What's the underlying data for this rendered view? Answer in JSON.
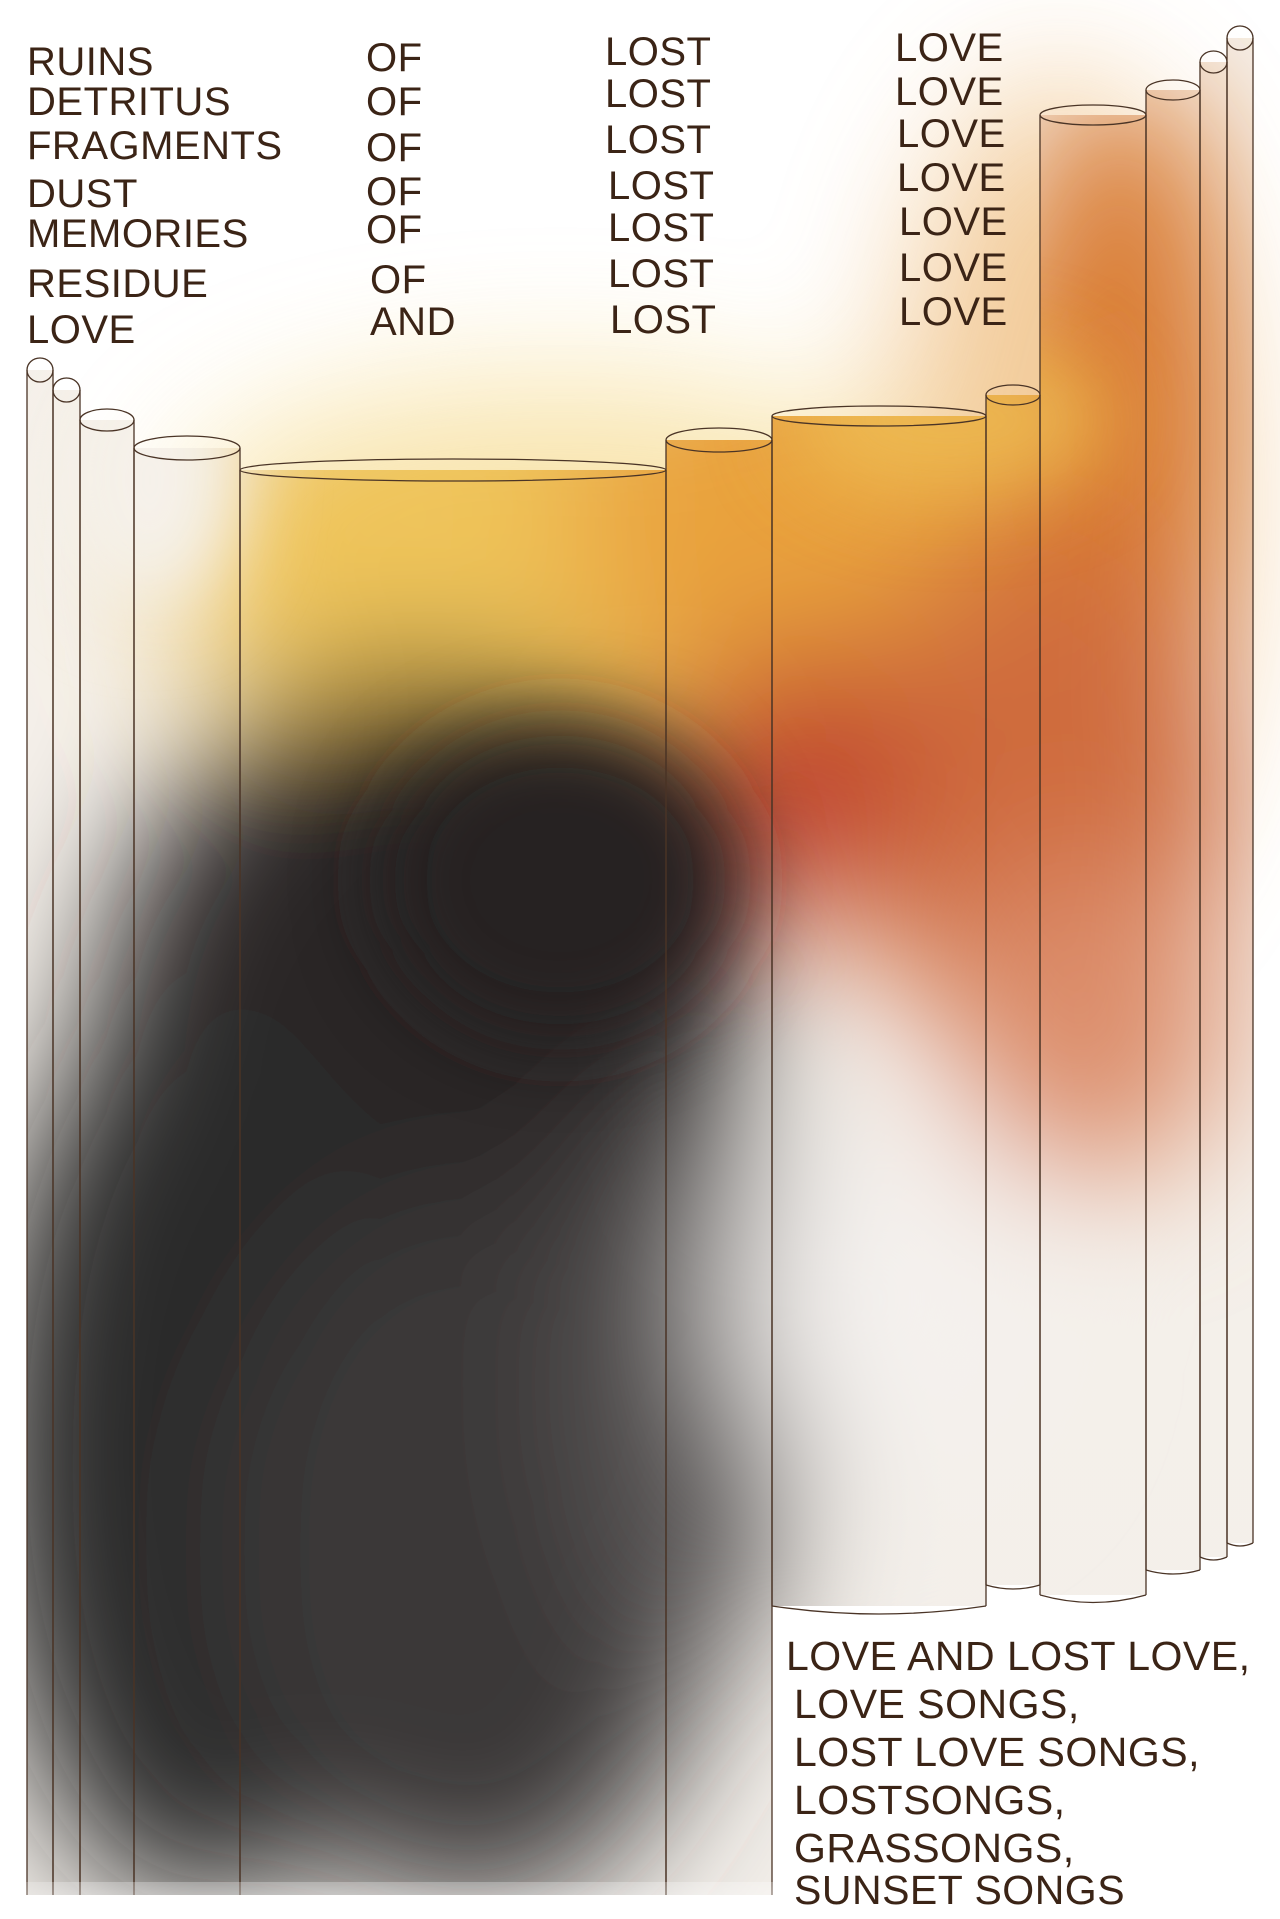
{
  "colors": {
    "text": "#3b2416",
    "outline": "#4a3426",
    "dark": "#2a2727",
    "amber": "#e9a73b",
    "gold": "#efc45a",
    "orange": "#d0743a",
    "red": "#c44a32"
  },
  "top_text": {
    "col1": [
      "RUINS",
      "DETRITUS",
      "FRAGMENTS",
      "DUST",
      "MEMORIES",
      "RESIDUE",
      "LOVE"
    ],
    "col2": [
      "OF",
      "OF",
      "OF",
      "OF",
      "OF",
      "OF",
      "AND"
    ],
    "col3": [
      "LOST",
      "LOST",
      "LOST",
      "LOST",
      "LOST",
      "LOST",
      "LOST"
    ],
    "col4": [
      "LOVE",
      "LOVE",
      "LOVE",
      "LOVE",
      "LOVE",
      "LOVE",
      "LOVE"
    ]
  },
  "bottom_text": [
    "LOVE AND LOST LOVE,",
    "LOVE SONGS,",
    "LOST LOVE SONGS,",
    "LOSTSONGS,",
    "GRASSONGS,",
    "SUNSET SONGS"
  ]
}
